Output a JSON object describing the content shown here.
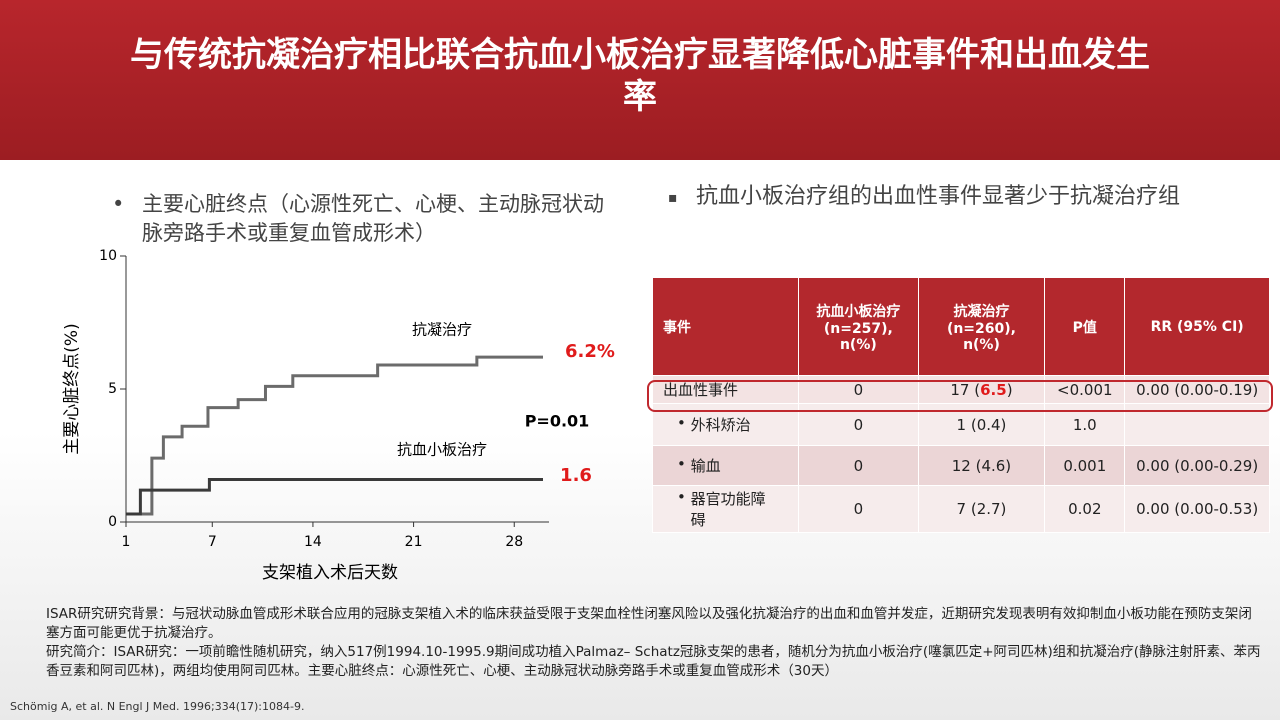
{
  "header": {
    "title": "与传统抗凝治疗相比联合抗血小板治疗显著降低心脏事件和出血发生率"
  },
  "left": {
    "bullet": "主要心脏终点（心源性死亡、心梗、主动脉冠状动脉旁路手术或重复血管成形术）"
  },
  "chart_data": {
    "type": "line",
    "step": true,
    "y_label": "主要心脏终点(%)",
    "x_label": "支架植入术后天数",
    "xlim": [
      1,
      30
    ],
    "xticks": [
      1,
      7,
      14,
      21,
      28
    ],
    "ylim": [
      0,
      10
    ],
    "yticks": [
      0,
      5,
      10
    ],
    "series": [
      {
        "name": "抗凝治疗",
        "color": "#6b6b6b",
        "end_label": "6.2%",
        "x": [
          1,
          2.8,
          3.6,
          4.9,
          6.7,
          8.8,
          10.7,
          12.6,
          18.5,
          25.4,
          30
        ],
        "values": [
          0.3,
          2.4,
          3.2,
          3.6,
          4.3,
          4.6,
          5.1,
          5.5,
          5.9,
          6.2,
          6.2
        ]
      },
      {
        "name": "抗血小板治疗",
        "color": "#3a3a3a",
        "end_label": "1.6",
        "x": [
          1,
          2,
          6.8,
          30
        ],
        "values": [
          0.3,
          1.2,
          1.6,
          1.6
        ]
      }
    ],
    "annotation": "P=0.01"
  },
  "right": {
    "bullet": "抗血小板治疗组的出血性事件显著少于抗凝治疗组"
  },
  "table": {
    "header": [
      "事件",
      "抗血小板治疗\n(n=257),\nn(%)",
      "抗凝治疗\n(n=260),\nn(%)",
      "P值",
      "RR (95% CI)"
    ],
    "rows": [
      [
        "出血性事件",
        "0",
        [
          "17 (",
          "6.5",
          ")"
        ],
        "<0.001",
        "0.00 (0.00-0.19)"
      ],
      [
        "外科矫治",
        "0",
        "1 (0.4)",
        "1.0",
        null
      ],
      [
        "输血",
        "0",
        "12 (4.6)",
        "0.001",
        "0.00 (0.00-0.29)"
      ],
      [
        "器官功能障碍",
        "0",
        "7 (2.7)",
        "0.02",
        "0.00 (0.00-0.53)"
      ]
    ]
  },
  "footer": {
    "paragraphs": [
      "ISAR研究研究背景：与冠状动脉血管成形术联合应用的冠脉支架植入术的临床获益受限于支架血栓性闭塞风险以及强化抗凝治疗的出血和血管并发症，近期研究发现表明有效抑制血小板功能在预防支架闭塞方面可能更优于抗凝治疗。",
      "研究简介：ISAR研究：一项前瞻性随机研究，纳入517例1994.10-1995.9期间成功植入Palmaz– Schatz冠脉支架的患者，随机分为抗血小板治疗(噻氯匹定+阿司匹林)组和抗凝治疗(静脉注射肝素、苯丙香豆素和阿司匹林)，两组均使用阿司匹林。主要心脏终点：心源性死亡、心梗、主动脉冠状动脉旁路手术或重复血管成形术（30天）"
    ],
    "reference": "Schömig A, et al. N Engl J Med. 1996;334(17):1084-9."
  }
}
